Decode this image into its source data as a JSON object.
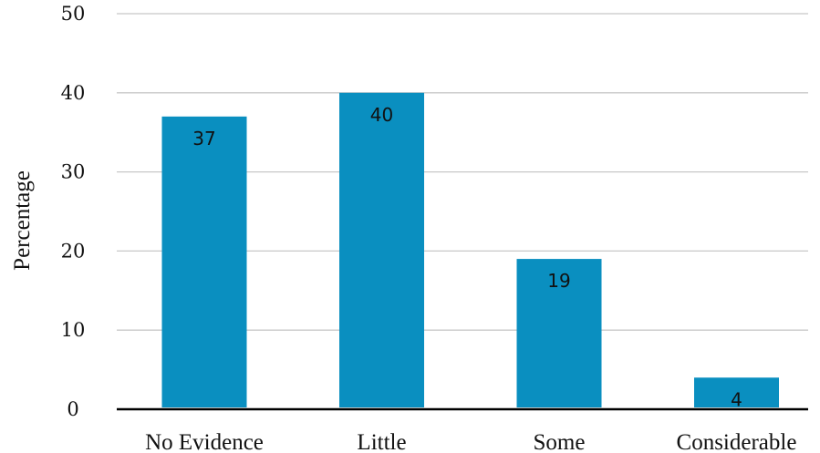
{
  "chart_data": {
    "type": "bar",
    "categories": [
      "No Evidence",
      "Little",
      "Some",
      "Considerable"
    ],
    "values": [
      37,
      40,
      19,
      4
    ],
    "data_labels": [
      "37",
      "40",
      "19",
      "4"
    ],
    "title": "",
    "xlabel": "",
    "ylabel": "Percentage",
    "ylim": [
      0,
      50
    ],
    "yticks": [
      0,
      10,
      20,
      30,
      40,
      50
    ],
    "ytick_labels": [
      "0",
      "10",
      "20",
      "30",
      "40",
      "50"
    ],
    "grid": true,
    "legend": "none",
    "bar_color": "#0a8fc0",
    "grid_color": "#c8c8c8",
    "axis_color": "#000000"
  }
}
